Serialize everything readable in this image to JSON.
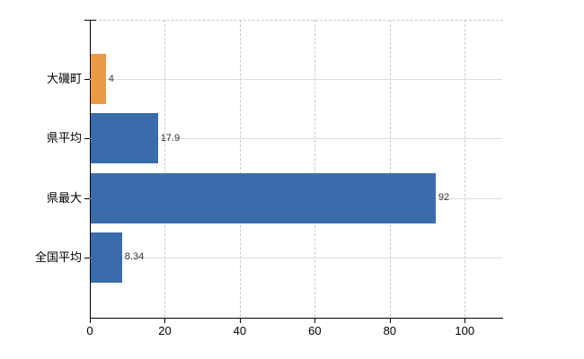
{
  "chart_data": {
    "type": "bar",
    "orientation": "horizontal",
    "title": "",
    "categories": [
      "大磯町",
      "県平均",
      "県最大",
      "全国平均"
    ],
    "values": [
      4,
      17.9,
      92,
      8.34
    ],
    "value_labels": [
      "4",
      "17.9",
      "92",
      "8.34"
    ],
    "bar_colors": [
      "#EC9A43",
      "#3A6CAC",
      "#3A6CAC",
      "#3A6CAC"
    ],
    "highlight_color": "#EC9A43",
    "default_bar_color": "#3A6CAC",
    "x_tick_values": [
      0,
      20,
      40,
      60,
      80,
      100
    ],
    "x_tick_labels": [
      "0",
      "20",
      "40",
      "60",
      "80",
      "100"
    ],
    "xlim": [
      0,
      110
    ],
    "grid": "on",
    "legend": "none",
    "background_color": "#FFFFFF",
    "axis_color": "#000000",
    "vertical_gridline_color": "#C8C6CC",
    "horizontal_gridline_color": "#D9E0D6",
    "value_label_color": "#333333"
  }
}
